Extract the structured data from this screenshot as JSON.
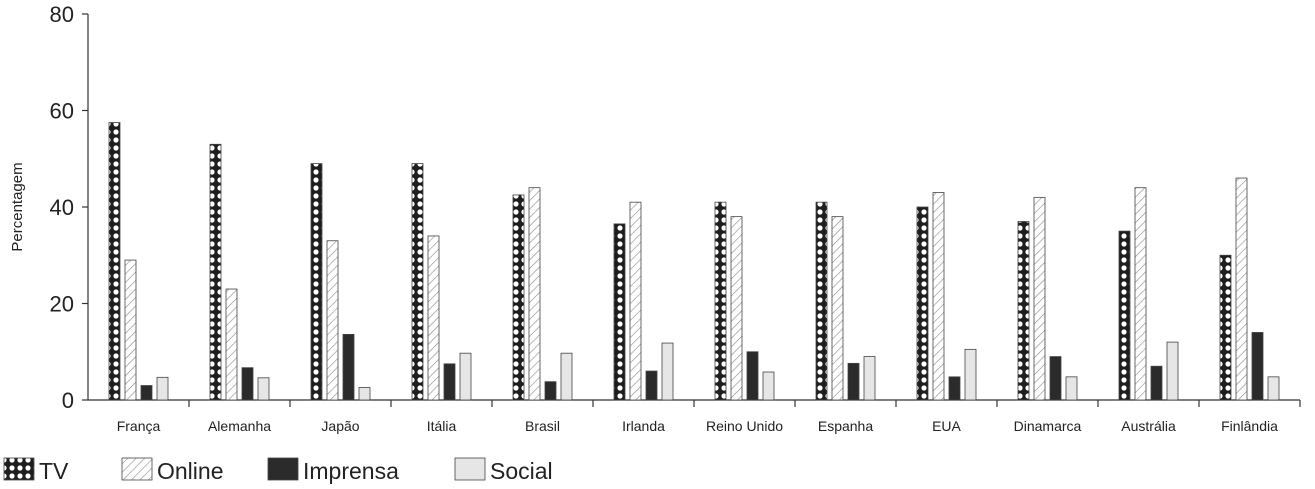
{
  "chart_data": {
    "type": "bar",
    "ylabel": "Percentagem",
    "ylim": [
      0,
      80
    ],
    "yticks": [
      0,
      20,
      40,
      60,
      80
    ],
    "grid": false,
    "legend_position": "bottom-left",
    "categories": [
      "França",
      "Alemanha",
      "Japão",
      "Itália",
      "Brasil",
      "Irlanda",
      "Reino Unido",
      "Espanha",
      "EUA",
      "Dinamarca",
      "Austrália",
      "Finlândia"
    ],
    "series": [
      {
        "name": "TV",
        "pattern": "circles",
        "values": [
          57.5,
          53,
          49,
          49,
          42.5,
          36.5,
          41,
          41,
          40,
          37,
          35,
          30
        ]
      },
      {
        "name": "Online",
        "pattern": "hatch",
        "values": [
          29,
          23,
          33,
          34,
          44,
          41,
          38,
          38,
          43,
          42,
          44,
          46
        ]
      },
      {
        "name": "Imprensa",
        "pattern": "solid-dark",
        "values": [
          3,
          6.7,
          13.6,
          7.5,
          3.8,
          6,
          10,
          7.6,
          4.8,
          9,
          7,
          14
        ]
      },
      {
        "name": "Social",
        "pattern": "solid-light",
        "values": [
          4.7,
          4.6,
          2.6,
          9.7,
          9.7,
          11.8,
          5.8,
          9,
          10.5,
          4.8,
          12,
          4.8
        ]
      }
    ],
    "colors": {
      "dark": "#2b2b2b",
      "light": "#e6e6e6",
      "stroke": "#444444"
    }
  }
}
